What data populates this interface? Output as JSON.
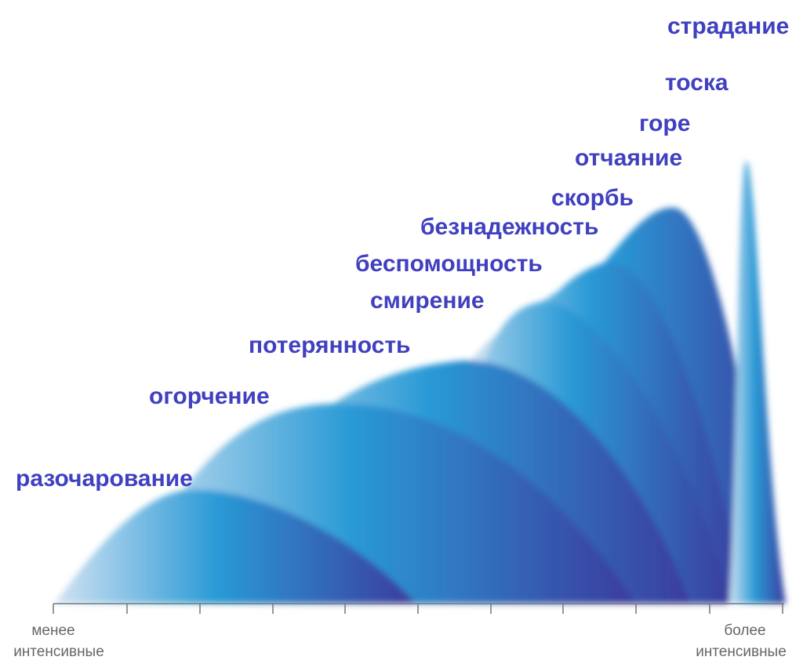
{
  "labels": [
    "разочарование",
    "огорчение",
    "потерянность",
    "смирение",
    "беспомощность",
    "безнадежность",
    "скорбь",
    "отчаяние",
    "горе",
    "тоска",
    "страдание"
  ],
  "axis": {
    "left": [
      "менее",
      "интенсивные"
    ],
    "right": [
      "более",
      "интенсивные"
    ]
  }
}
